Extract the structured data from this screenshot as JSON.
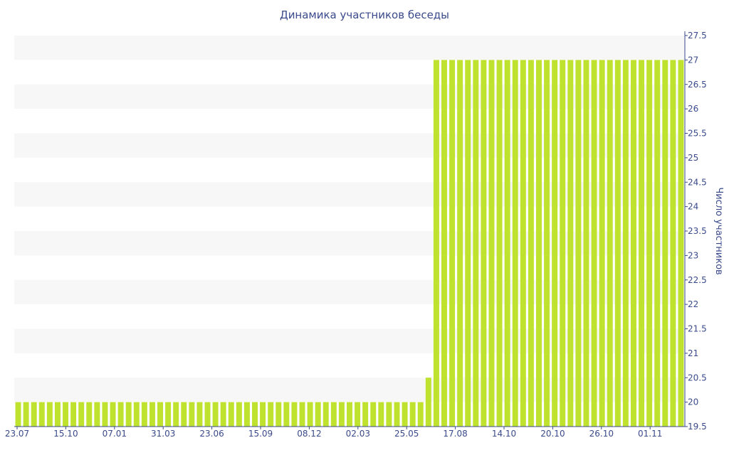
{
  "chart_data": {
    "type": "bar",
    "title": "Динамика участников беседы",
    "ylabel": "Число участников",
    "xlabel": "",
    "ylim": [
      19.5,
      27.5
    ],
    "yticks": [
      "19.5",
      "20",
      "20.5",
      "21",
      "21.5",
      "22",
      "22.5",
      "23",
      "23.5",
      "24",
      "24.5",
      "25",
      "25.5",
      "26",
      "26.5",
      "27",
      "27.5"
    ],
    "xtick_labels": [
      "23.07",
      "15.10",
      "07.01",
      "31.03",
      "23.06",
      "15.09",
      "08.12",
      "02.03",
      "25.05",
      "17.08",
      "14.10",
      "20.10",
      "26.10",
      "01.11"
    ],
    "bar_color": "#bfe22e",
    "axis_color": "#3a4a8c",
    "band_color": "#f7f7f7",
    "grid": "horizontal bands",
    "legend": "none",
    "series": [
      {
        "values": [
          20,
          20,
          20,
          20,
          20,
          20,
          20,
          20,
          20,
          20,
          20,
          20,
          20,
          20,
          20,
          20,
          20,
          20,
          20,
          20,
          20,
          20,
          20,
          20,
          20,
          20,
          20,
          20,
          20,
          20,
          20,
          20,
          20,
          20,
          20,
          20,
          20,
          20,
          20,
          20,
          20,
          20,
          20,
          20,
          20,
          20,
          20,
          20,
          20,
          20,
          20,
          20,
          20.5,
          27,
          27,
          27,
          27,
          27,
          27,
          27,
          27,
          27,
          27,
          27,
          27,
          27,
          27,
          27,
          27,
          27,
          27,
          27,
          27,
          27,
          27,
          27,
          27,
          27,
          27,
          27,
          27,
          27,
          27,
          27,
          27
        ]
      }
    ]
  }
}
